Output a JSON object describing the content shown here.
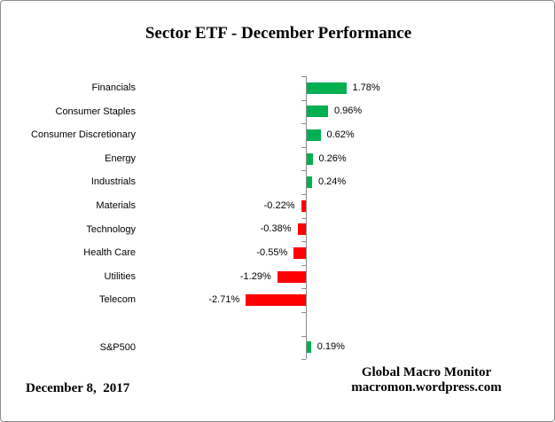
{
  "title": "Sector ETF - December Performance",
  "chart_data": {
    "type": "bar",
    "orientation": "horizontal",
    "title": "Sector ETF - December Performance",
    "xlabel": "",
    "ylabel": "",
    "unit": "%",
    "categories": [
      "Financials",
      "Consumer Staples",
      "Consumer Discretionary",
      "Energy",
      "Industrials",
      "Materials",
      "Technology",
      "Health Care",
      "Utilities",
      "Telecom",
      "S&P500"
    ],
    "values": [
      1.78,
      0.96,
      0.62,
      0.26,
      0.24,
      -0.22,
      -0.38,
      -0.55,
      -1.29,
      -2.71,
      0.19
    ],
    "value_labels": [
      "1.78%",
      "0.96%",
      "0.62%",
      "0.26%",
      "0.24%",
      "-0.22%",
      "-0.38%",
      "-0.55%",
      "-1.29%",
      "-2.71%",
      "0.19%"
    ],
    "separator_before_last": true,
    "grid": false,
    "legend": false,
    "data_labels_position": "outside-end",
    "colors": {
      "positive": "#00B050",
      "negative": "#FF0000",
      "axis": "#8c8c8c",
      "text": "#000000"
    }
  },
  "footer": {
    "date": "December 8,  2017",
    "source_line1": "Global Macro Monitor",
    "source_line2": "macromon.wordpress.com"
  }
}
